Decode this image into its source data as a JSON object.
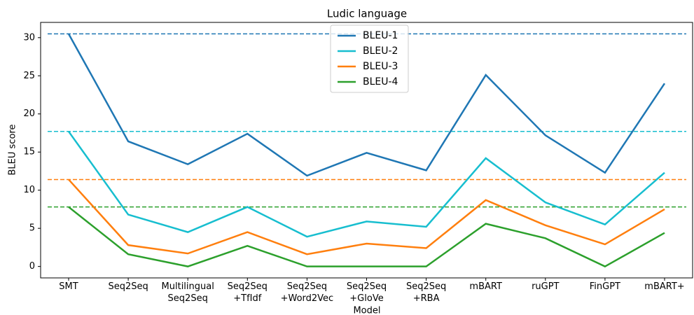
{
  "chart_data": {
    "type": "line",
    "title": "Ludic language",
    "xlabel": "Model",
    "ylabel": "BLEU score",
    "categories": [
      "SMT",
      "Seq2Seq",
      "Multilingual\nSeq2Seq",
      "Seq2Seq\n+TfIdf",
      "Seq2Seq\n+Word2Vec",
      "Seq2Seq\n+GloVe",
      "Seq2Seq\n+RBA",
      "mBART",
      "ruGPT",
      "FinGPT",
      "mBART+"
    ],
    "series": [
      {
        "name": "BLEU-1",
        "color": "#1f77b4",
        "values": [
          30.5,
          16.4,
          13.4,
          17.4,
          11.9,
          14.9,
          12.6,
          25.1,
          17.2,
          12.3,
          24.0
        ]
      },
      {
        "name": "BLEU-2",
        "color": "#17becf",
        "values": [
          17.7,
          6.8,
          4.5,
          7.8,
          3.9,
          5.9,
          5.2,
          14.2,
          8.4,
          5.5,
          12.3
        ]
      },
      {
        "name": "BLEU-3",
        "color": "#ff7f0e",
        "values": [
          11.4,
          2.8,
          1.7,
          4.5,
          1.6,
          3.0,
          2.4,
          8.7,
          5.4,
          2.9,
          7.5
        ]
      },
      {
        "name": "BLEU-4",
        "color": "#2ca02c",
        "values": [
          7.8,
          1.6,
          0,
          2.7,
          0,
          0,
          0,
          5.6,
          3.7,
          0,
          4.4
        ]
      }
    ],
    "ylim": [
      -1.5,
      32.0
    ],
    "yticks": [
      0,
      5,
      10,
      15,
      20,
      25,
      30
    ],
    "legend": "upper center"
  }
}
